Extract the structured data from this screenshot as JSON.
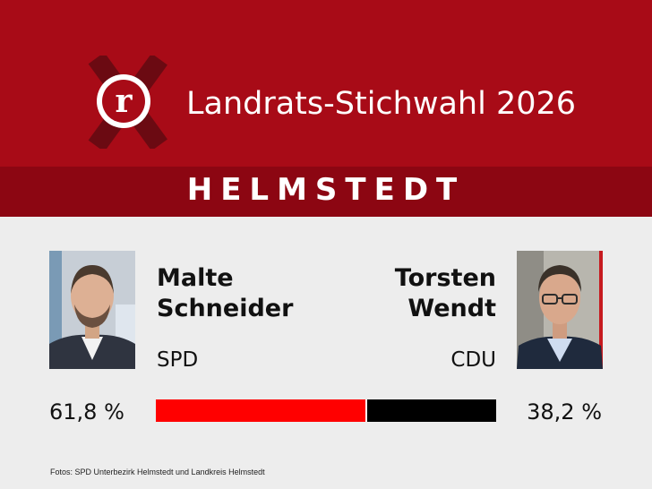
{
  "header": {
    "title": "Landrats-Stichwahl 2026"
  },
  "region": "HELMSTEDT",
  "candidates": {
    "left": {
      "name_line1": "Malte",
      "name_line2": "Schneider",
      "party": "SPD",
      "percent_label": "61,8 %",
      "share": 0.618
    },
    "right": {
      "name_line1": "Torsten",
      "name_line2": "Wendt",
      "party": "CDU",
      "percent_label": "38,2 %",
      "share": 0.382
    }
  },
  "credit": "Fotos: SPD Unterbezirk Helmstedt und Landkreis Helmstedt",
  "colors": {
    "header": "#a80b17",
    "band": "#8c0612",
    "left_bar": "#ff0000",
    "right_bar": "#000000",
    "background": "#ededed"
  }
}
